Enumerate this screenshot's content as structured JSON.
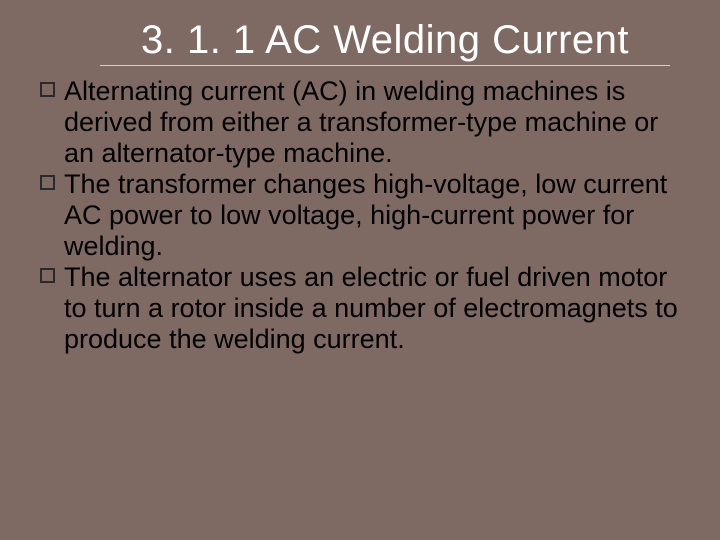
{
  "slide": {
    "background_color": "#7f6a63",
    "title_color": "#ffffff",
    "body_text_color": "#000000",
    "underline_color": "#d8cfc9",
    "bullet_border_color": "#2a2a2a",
    "title_fontsize": 40,
    "body_fontsize": 27,
    "title": "3. 1. 1 AC Welding Current",
    "bullets": [
      "Alternating current (AC) in welding machines is derived from either a transformer-type machine or an alternator-type machine.",
      "The transformer changes high-voltage, low current AC power to low voltage, high-current power for welding.",
      "The alternator uses an electric or fuel driven motor to turn a rotor inside a number of electromagnets to produce the welding current."
    ]
  }
}
